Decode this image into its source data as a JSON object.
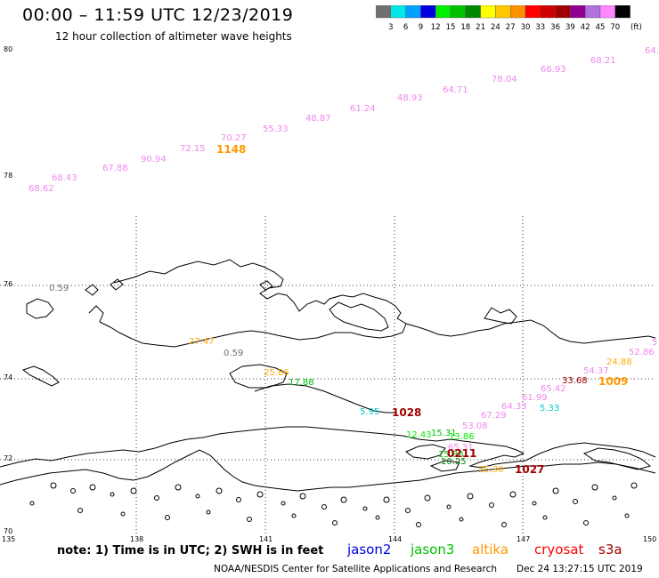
{
  "header": {
    "title": "00:00 – 11:59 UTC 12/23/2019",
    "subtitle": "12 hour collection of altimeter wave heights"
  },
  "colorbar": {
    "unit": "(ft)",
    "colors": [
      "#707070",
      "#00e8e8",
      "#00a0ff",
      "#0000e0",
      "#00ee00",
      "#00c000",
      "#008800",
      "#ffff00",
      "#ffc800",
      "#ff9000",
      "#ff0000",
      "#d00000",
      "#a00000",
      "#900090",
      "#b070e0",
      "#ff88ff",
      "#000000"
    ],
    "labels": [
      "3",
      "6",
      "9",
      "12",
      "15",
      "18",
      "21",
      "24",
      "27",
      "30",
      "33",
      "36",
      "39",
      "42",
      "45",
      "70"
    ]
  },
  "axes": {
    "lat_labels": [
      "80",
      "78",
      "76",
      "74",
      "72",
      "70"
    ],
    "lon_labels": [
      "135",
      "138",
      "141",
      "144",
      "147",
      "150"
    ]
  },
  "wave_heights": [
    {
      "text": "68.62",
      "color": "#ee88ee"
    },
    {
      "text": "68.43",
      "color": "#ee88ee"
    },
    {
      "text": "67.88",
      "color": "#ee88ee"
    },
    {
      "text": "90.94",
      "color": "#ee88ee"
    },
    {
      "text": "72.15",
      "color": "#ee88ee"
    },
    {
      "text": "70.27",
      "color": "#ee88ee"
    },
    {
      "text": "55.33",
      "color": "#ee88ee"
    },
    {
      "text": "48.87",
      "color": "#ee88ee"
    },
    {
      "text": "61.24",
      "color": "#ee88ee"
    },
    {
      "text": "48.93",
      "color": "#ee88ee"
    },
    {
      "text": "64.71",
      "color": "#ee88ee"
    },
    {
      "text": "78.04",
      "color": "#ee88ee"
    },
    {
      "text": "66.93",
      "color": "#ee88ee"
    },
    {
      "text": "68.21",
      "color": "#ee88ee"
    },
    {
      "text": "64.",
      "color": "#ee88ee"
    },
    {
      "text": "0.59",
      "color": "#707070"
    },
    {
      "text": "0.59",
      "color": "#707070"
    },
    {
      "text": "27.47",
      "color": "#ffaa00"
    },
    {
      "text": "25.86",
      "color": "#ffaa00"
    },
    {
      "text": "17.88",
      "color": "#00c000"
    },
    {
      "text": "5.95",
      "color": "#00cccc"
    },
    {
      "text": "12.43",
      "color": "#00ee00"
    },
    {
      "text": "15.31",
      "color": "#00c000"
    },
    {
      "text": "13.86",
      "color": "#00ee00"
    },
    {
      "text": "15.88",
      "color": "#00c000"
    },
    {
      "text": "10.25",
      "color": "#008800"
    },
    {
      "text": "53.08",
      "color": "#ee88ee"
    },
    {
      "text": "67.29",
      "color": "#ee88ee"
    },
    {
      "text": "64.33",
      "color": "#ee88ee"
    },
    {
      "text": "61.99",
      "color": "#ee88ee"
    },
    {
      "text": "65.42",
      "color": "#ee88ee"
    },
    {
      "text": "5.33",
      "color": "#00cccc"
    },
    {
      "text": "33.68",
      "color": "#a00000"
    },
    {
      "text": "54.37",
      "color": "#ee88ee"
    },
    {
      "text": "24.88",
      "color": "#ffaa00"
    },
    {
      "text": "52.86",
      "color": "#ee88ee"
    },
    {
      "text": "5",
      "color": "#ee88ee"
    },
    {
      "text": "25.30",
      "color": "#ffaa00"
    },
    {
      "text": "65.31",
      "color": "#ee88ee"
    }
  ],
  "pass_times": [
    {
      "text": "1148",
      "color": "#ff9900"
    },
    {
      "text": "1028",
      "color": "#a00000"
    },
    {
      "text": "1009",
      "color": "#ff9900"
    },
    {
      "text": "0211",
      "color": "#a00000"
    },
    {
      "text": "1027",
      "color": "#a00000"
    }
  ],
  "footer": {
    "note": "note:  1) Time is in UTC;  2) SWH is in feet",
    "missions": [
      {
        "name": "jason2",
        "color": "#0000e0"
      },
      {
        "name": "jason3",
        "color": "#00c000"
      },
      {
        "name": "altika",
        "color": "#ff9900"
      },
      {
        "name": "cryosat",
        "color": "#ff0000"
      },
      {
        "name": "s3a",
        "color": "#a00000"
      }
    ],
    "credit": "NOAA/NESDIS Center for Satellite Applications and Research",
    "timestamp": "Dec 24 13:27:15 UTC 2019"
  }
}
